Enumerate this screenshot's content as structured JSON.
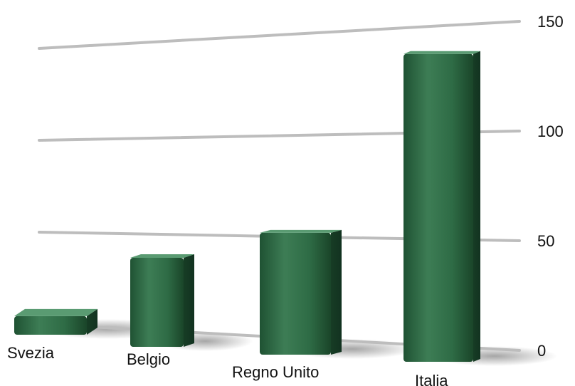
{
  "chart_data": {
    "type": "bar",
    "title": "",
    "xlabel": "",
    "ylabel": "",
    "categories": [
      "Svezia",
      "Belgio",
      "Regno Unito",
      "Italia"
    ],
    "values": [
      18,
      50,
      58,
      133
    ],
    "ylim": [
      0,
      150
    ],
    "yticks": [
      0,
      50,
      100,
      150
    ],
    "grid": true,
    "legend": "none",
    "style": "3d-perspective",
    "colors": {
      "bar": "#2e6b45",
      "bar_dark": "#1b4a2c",
      "bar_light": "#5a9b72",
      "grid": "#bdbdbd"
    }
  }
}
